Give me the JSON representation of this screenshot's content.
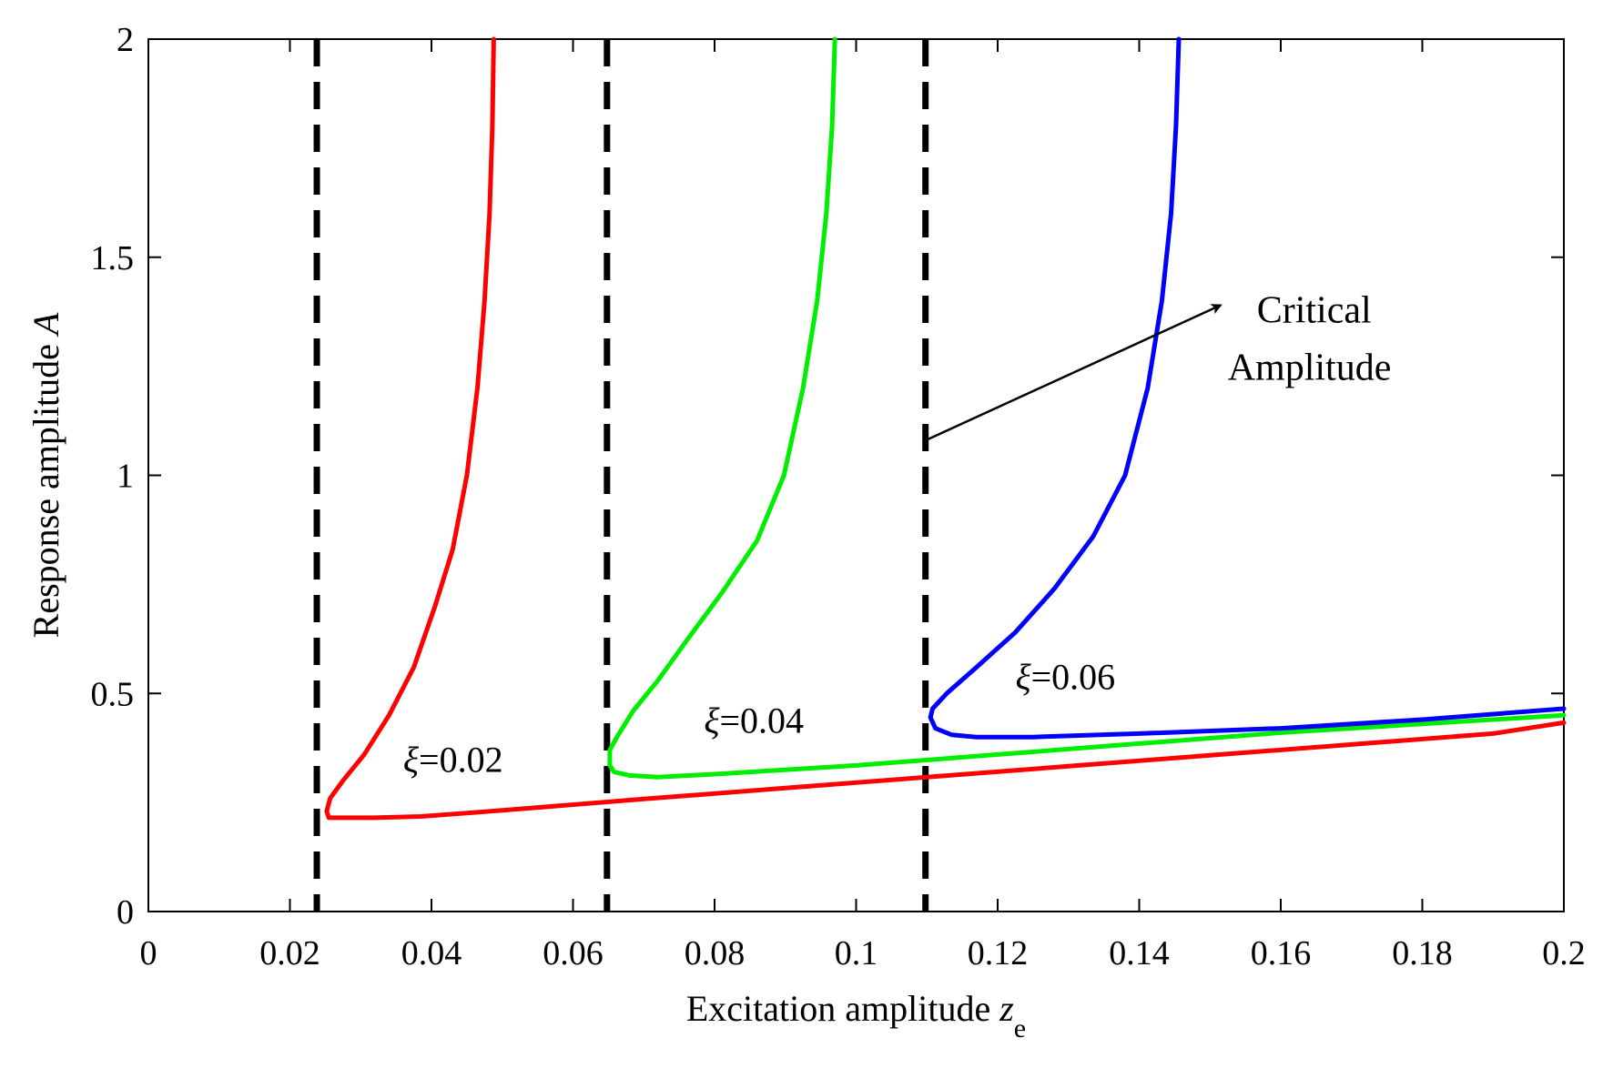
{
  "chart_data": {
    "type": "line",
    "xlabel": "Excitation amplitude",
    "xlabel_symbol": "z",
    "xlabel_subscript": "e",
    "ylabel": "Response amplitude",
    "ylabel_symbol": "A",
    "xlim": [
      0,
      0.2
    ],
    "ylim": [
      0,
      2
    ],
    "x_ticks": [
      0,
      0.02,
      0.04,
      0.06,
      0.08,
      0.1,
      0.12,
      0.14,
      0.16,
      0.18,
      0.2
    ],
    "x_tick_labels": [
      "0",
      "0.02",
      "0.04",
      "0.06",
      "0.08",
      "0.1",
      "0.12",
      "0.14",
      "0.16",
      "0.18",
      "0.2"
    ],
    "y_ticks": [
      0,
      0.5,
      1,
      1.5,
      2
    ],
    "y_tick_labels": [
      "0",
      "0.5",
      "1",
      "1.5",
      "2"
    ],
    "grid": false,
    "series": [
      {
        "label_symbol": "ξ",
        "label_value": "=0.02",
        "color": "#ff0000",
        "label_at": [
          0.036,
          0.32
        ],
        "x": [
          0.0488,
          0.0486,
          0.0482,
          0.0475,
          0.0465,
          0.045,
          0.043,
          0.0405,
          0.0375,
          0.034,
          0.0305,
          0.0275,
          0.0257,
          0.0252,
          0.0255,
          0.028,
          0.032,
          0.0385,
          0.05,
          0.07,
          0.09,
          0.11,
          0.13,
          0.15,
          0.17,
          0.19,
          0.2
        ],
        "y": [
          2.0,
          1.8,
          1.6,
          1.4,
          1.2,
          1.0,
          0.83,
          0.7,
          0.56,
          0.45,
          0.36,
          0.3,
          0.26,
          0.23,
          0.215,
          0.215,
          0.215,
          0.218,
          0.232,
          0.258,
          0.283,
          0.308,
          0.333,
          0.358,
          0.383,
          0.408,
          0.433
        ]
      },
      {
        "label_symbol": "ξ",
        "label_value": "=0.04",
        "color": "#00ee00",
        "label_at": [
          0.0785,
          0.41
        ],
        "x": [
          0.097,
          0.0966,
          0.0958,
          0.0945,
          0.0925,
          0.0898,
          0.086,
          0.081,
          0.076,
          0.072,
          0.0685,
          0.0662,
          0.0652,
          0.0652,
          0.0658,
          0.068,
          0.072,
          0.08,
          0.1,
          0.12,
          0.14,
          0.16,
          0.18,
          0.2
        ],
        "y": [
          2.0,
          1.8,
          1.6,
          1.4,
          1.2,
          1.0,
          0.85,
          0.73,
          0.62,
          0.53,
          0.46,
          0.4,
          0.37,
          0.335,
          0.32,
          0.312,
          0.308,
          0.315,
          0.335,
          0.36,
          0.385,
          0.41,
          0.43,
          0.45
        ]
      },
      {
        "label_symbol": "ξ",
        "label_value": "=0.06",
        "color": "#0000ff",
        "label_at": [
          0.1225,
          0.51
        ],
        "x": [
          0.1456,
          0.1452,
          0.1445,
          0.1432,
          0.1412,
          0.138,
          0.1335,
          0.128,
          0.1225,
          0.117,
          0.1128,
          0.1108,
          0.1105,
          0.1112,
          0.1135,
          0.117,
          0.125,
          0.14,
          0.16,
          0.18,
          0.2
        ],
        "y": [
          2.0,
          1.8,
          1.6,
          1.4,
          1.2,
          1.0,
          0.86,
          0.74,
          0.64,
          0.56,
          0.5,
          0.465,
          0.445,
          0.42,
          0.405,
          0.4,
          0.4,
          0.408,
          0.42,
          0.44,
          0.465
        ]
      }
    ],
    "critical_lines": [
      0.0238,
      0.0648,
      0.1098
    ],
    "annotation": {
      "lines": [
        "Critical",
        "Amplitude"
      ],
      "arrow_from": [
        0.1098,
        1.08
      ],
      "arrow_to": [
        0.1515,
        1.39
      ],
      "text_at": [
        0.1525,
        1.35
      ]
    }
  }
}
